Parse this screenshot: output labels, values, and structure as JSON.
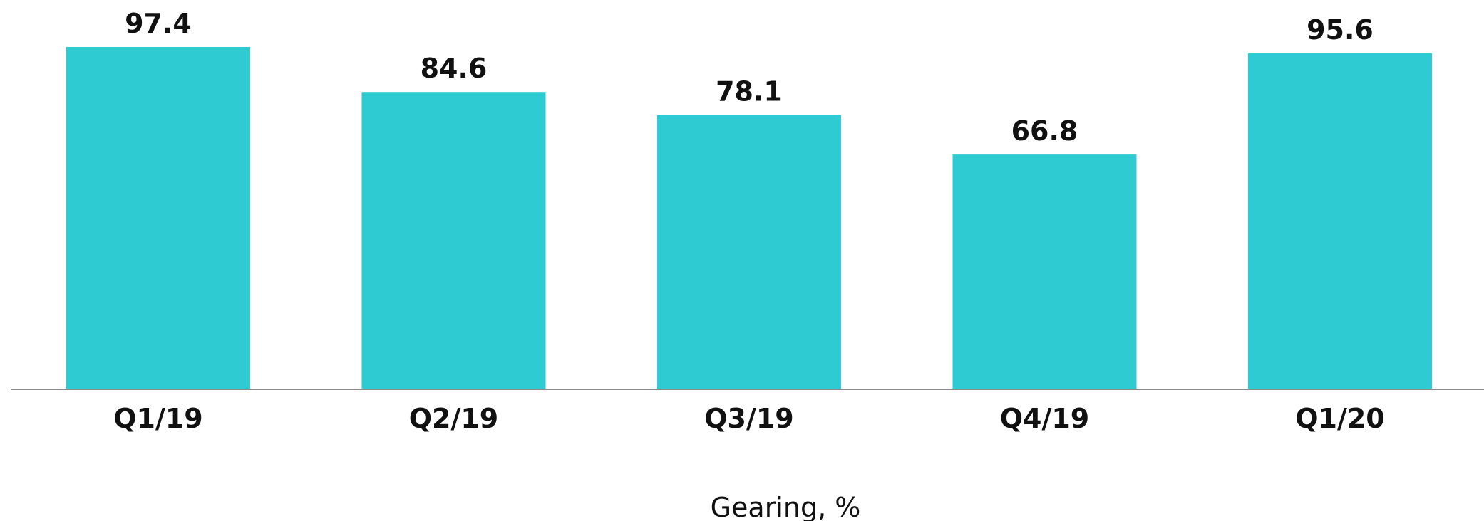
{
  "chart_data": {
    "type": "bar",
    "categories": [
      "Q1/19",
      "Q2/19",
      "Q3/19",
      "Q4/19",
      "Q1/20"
    ],
    "values": [
      97.4,
      84.6,
      78.1,
      66.8,
      95.6
    ],
    "value_labels": [
      "97.4",
      "84.6",
      "78.1",
      "66.8",
      "95.6"
    ],
    "title": "",
    "xlabel": "Gearing, %",
    "ylabel": "",
    "ylim": [
      0,
      97.4
    ],
    "grid": false,
    "legend": "none",
    "colors": {
      "bar": "#2ECBD2",
      "axis": "#8a8a8a",
      "text": "#111111"
    }
  }
}
